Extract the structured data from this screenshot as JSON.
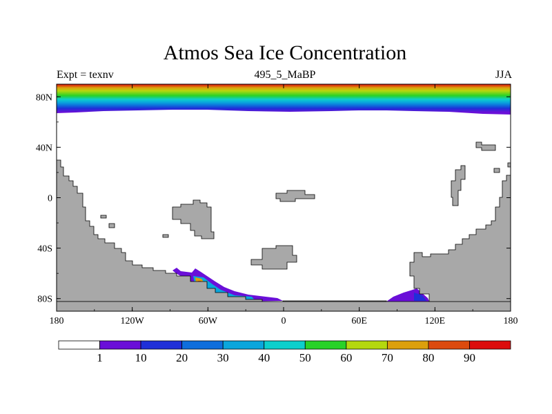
{
  "chart_data": {
    "type": "heatmap",
    "title": "Atmos Sea Ice Concentration",
    "subtitle_left": "Expt = texnv",
    "subtitle_center": "495_5_MaBP",
    "subtitle_right": "JJA",
    "x_ticks": [
      "180",
      "120W",
      "60W",
      "0",
      "60E",
      "120E",
      "180"
    ],
    "x_tick_values": [
      -180,
      -120,
      -60,
      0,
      60,
      120,
      180
    ],
    "y_ticks": [
      "80N",
      "40N",
      "0",
      "40S",
      "80S"
    ],
    "y_tick_values": [
      80,
      40,
      0,
      -40,
      -80
    ],
    "xlim": [
      -180,
      180
    ],
    "ylim": [
      -90,
      90
    ],
    "colorbar": {
      "levels": [
        "1",
        "10",
        "20",
        "30",
        "40",
        "50",
        "60",
        "70",
        "80",
        "90"
      ],
      "colors": [
        "#ffffff",
        "#6a0fd8",
        "#1f2fd8",
        "#0e6edc",
        "#0aa6dc",
        "#0ccfcc",
        "#28d228",
        "#b4d80e",
        "#dca00c",
        "#dc4a0e",
        "#dc0c0c"
      ]
    },
    "land_color": "#a8a8a8"
  }
}
